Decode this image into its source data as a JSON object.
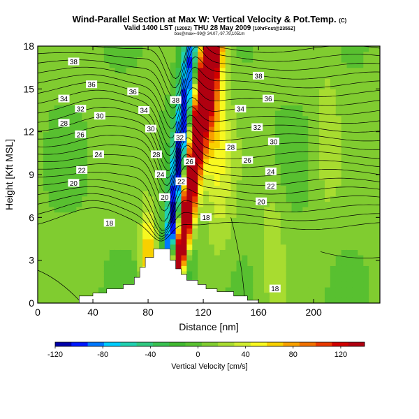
{
  "titles": {
    "main": "Wind-Parallel Section at Max W: Vertical Velocity & Pot.Temp.",
    "copyright": "(C)",
    "valid_prefix": "Valid 1400 LST",
    "valid_z": "(1200Z)",
    "valid_suffix": "THU 28 May 2009",
    "forecast": "[10hrFcst@2355Z]",
    "location": "box@max=-99@ 34.07,-97.79,1051m"
  },
  "chart_data": {
    "type": "heatmap",
    "xlabel": "Distance [nm]",
    "ylabel": "Height [Kft MSL]",
    "xlim": [
      0,
      248
    ],
    "ylim": [
      0,
      18
    ],
    "x_ticks": [
      0,
      40,
      80,
      120,
      160,
      200
    ],
    "y_ticks": [
      0,
      3,
      6,
      9,
      12,
      15,
      18
    ],
    "colorbar": {
      "label": "Vertical Velocity [cm/s]",
      "range": [
        -120,
        140
      ],
      "tick_values": [
        -120,
        -80,
        -40,
        0,
        40,
        80,
        120
      ],
      "colors": [
        "#0000a8",
        "#0018ff",
        "#0078ff",
        "#00ccff",
        "#20d0b0",
        "#30c880",
        "#38c050",
        "#40b830",
        "#58c030",
        "#80cc30",
        "#a8dc30",
        "#d0ec30",
        "#f8f820",
        "#f8d000",
        "#f8a000",
        "#f07000",
        "#e83800",
        "#d00000",
        "#b00010"
      ]
    },
    "contour_labels": [
      {
        "text": "38",
        "x": 26,
        "y": 16.9
      },
      {
        "text": "36",
        "x": 39,
        "y": 15.3
      },
      {
        "text": "36",
        "x": 69,
        "y": 14.8
      },
      {
        "text": "34",
        "x": 19,
        "y": 14.3
      },
      {
        "text": "32",
        "x": 31,
        "y": 13.6
      },
      {
        "text": "30",
        "x": 45,
        "y": 13.1
      },
      {
        "text": "34",
        "x": 77,
        "y": 13.5
      },
      {
        "text": "38",
        "x": 100,
        "y": 14.2
      },
      {
        "text": "28",
        "x": 19,
        "y": 12.6
      },
      {
        "text": "26",
        "x": 31,
        "y": 11.8
      },
      {
        "text": "30",
        "x": 82,
        "y": 12.2
      },
      {
        "text": "32",
        "x": 103,
        "y": 11.6
      },
      {
        "text": "24",
        "x": 44,
        "y": 10.4
      },
      {
        "text": "28",
        "x": 86,
        "y": 10.4
      },
      {
        "text": "26",
        "x": 110,
        "y": 9.9
      },
      {
        "text": "22",
        "x": 32,
        "y": 9.3
      },
      {
        "text": "24",
        "x": 89,
        "y": 9.0
      },
      {
        "text": "22",
        "x": 104,
        "y": 8.5
      },
      {
        "text": "20",
        "x": 26,
        "y": 8.4
      },
      {
        "text": "20",
        "x": 92,
        "y": 7.4
      },
      {
        "text": "18",
        "x": 52,
        "y": 5.6
      },
      {
        "text": "18",
        "x": 122,
        "y": 6.0
      },
      {
        "text": "38",
        "x": 160,
        "y": 15.9
      },
      {
        "text": "36",
        "x": 167,
        "y": 14.3
      },
      {
        "text": "34",
        "x": 147,
        "y": 13.6
      },
      {
        "text": "32",
        "x": 159,
        "y": 12.3
      },
      {
        "text": "30",
        "x": 171,
        "y": 11.3
      },
      {
        "text": "28",
        "x": 140,
        "y": 10.9
      },
      {
        "text": "26",
        "x": 152,
        "y": 10.0
      },
      {
        "text": "24",
        "x": 169,
        "y": 9.2
      },
      {
        "text": "22",
        "x": 169,
        "y": 8.2
      },
      {
        "text": "20",
        "x": 162,
        "y": 7.1
      },
      {
        "text": "18",
        "x": 172,
        "y": 1.0
      }
    ]
  }
}
